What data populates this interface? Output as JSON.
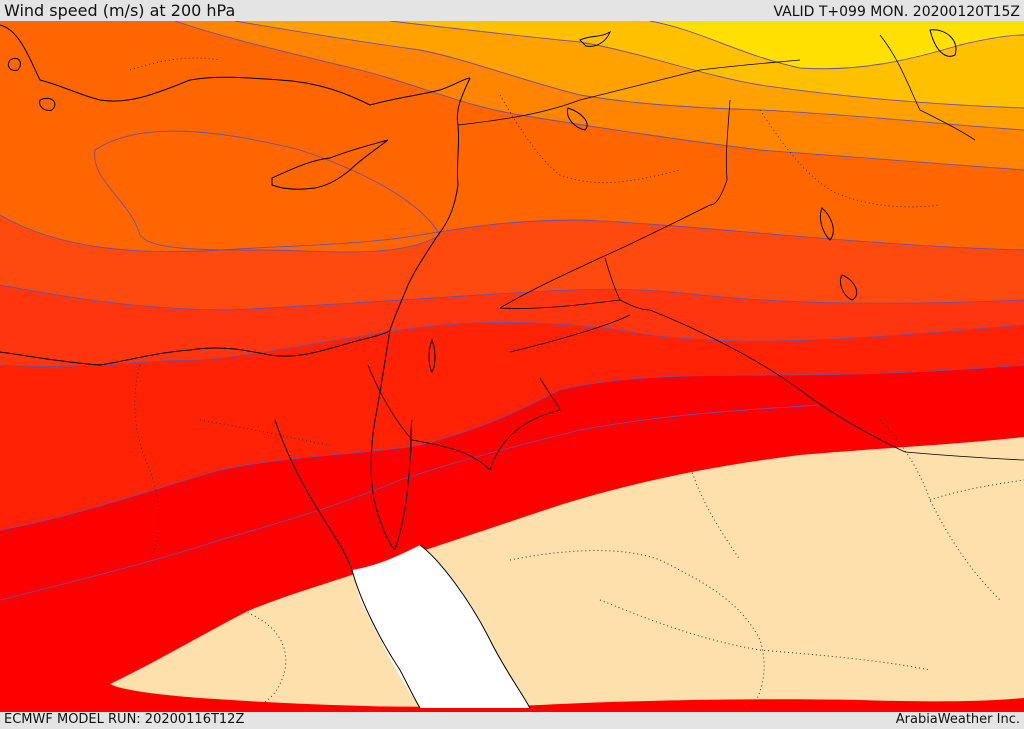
{
  "header": {
    "title": "Wind speed (m/s) at 200 hPa",
    "valid": "VALID T+099 MON. 20200120T15Z"
  },
  "footer": {
    "model_run": "ECMWF MODEL RUN: 20200116T12Z",
    "credit": "ArabiaWeather Inc."
  },
  "palette": {
    "yellow": "#ffe000",
    "gold": "#ffc000",
    "amber": "#ffa200",
    "orange": "#ff8400",
    "dark_orange": "#ff6600",
    "red_orange": "#ff4a0f",
    "orange_red": "#ff3510",
    "red": "#ff2205",
    "pure_red": "#ff0000",
    "low_wind": "#fde0ac",
    "sea": "#ffffff"
  }
}
